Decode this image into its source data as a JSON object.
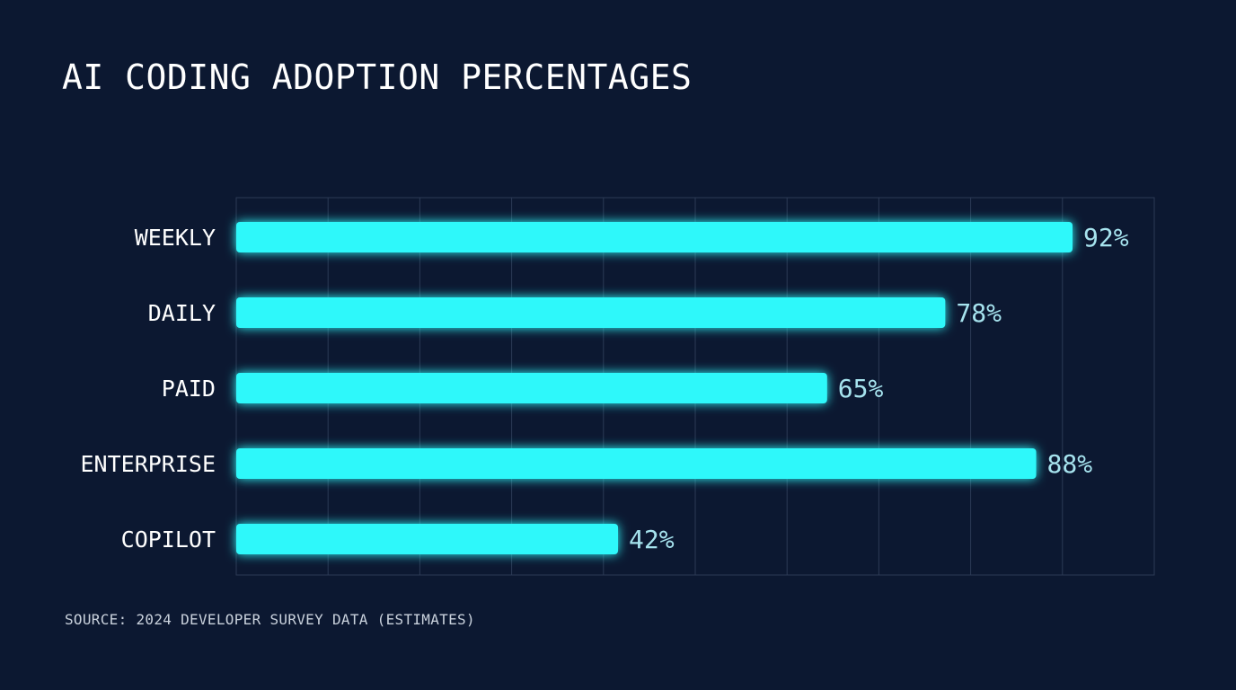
{
  "colors": {
    "background": "#0c1831",
    "bar": "#2ff8fa",
    "bar_glow": "#1fe4ff",
    "value_text": "#a6e3ee",
    "grid": "#2c3a55"
  },
  "chart_data": {
    "type": "bar",
    "orientation": "horizontal",
    "title": "AI CODING ADOPTION PERCENTAGES",
    "categories": [
      "WEEKLY",
      "DAILY",
      "PAID",
      "ENTERPRISE",
      "COPILOT"
    ],
    "values": [
      92,
      78,
      65,
      88,
      42
    ],
    "value_labels": [
      "92%",
      "78%",
      "65%",
      "88%",
      "42%"
    ],
    "xlim": [
      0,
      100
    ],
    "grid": true,
    "source": "SOURCE: 2024 DEVELOPER SURVEY DATA (ESTIMATES)"
  }
}
